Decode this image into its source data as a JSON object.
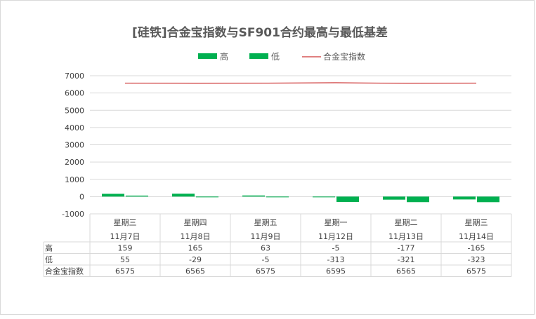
{
  "chart_data": {
    "type": "bar",
    "title": "[硅铁]合金宝指数与SF901合约最高与最低基差",
    "categories": [
      {
        "day": "星期三",
        "date": "11月7日"
      },
      {
        "day": "星期四",
        "date": "11月8日"
      },
      {
        "day": "星期五",
        "date": "11月9日"
      },
      {
        "day": "星期一",
        "date": "11月12日"
      },
      {
        "day": "星期二",
        "date": "11月13日"
      },
      {
        "day": "星期三",
        "date": "11月14日"
      }
    ],
    "series": [
      {
        "name": "高",
        "type": "bar",
        "color": "#00b050",
        "values": [
          159,
          165,
          63,
          -5,
          -177,
          -165
        ]
      },
      {
        "name": "低",
        "type": "bar",
        "color": "#00b050",
        "values": [
          55,
          -29,
          -5,
          -313,
          -321,
          -323
        ]
      },
      {
        "name": "合金宝指数",
        "type": "line",
        "color": "#c00000",
        "values": [
          6575,
          6565,
          6575,
          6595,
          6565,
          6575
        ]
      }
    ],
    "y_ticks": [
      7000,
      6000,
      5000,
      4000,
      3000,
      2000,
      1000,
      0,
      -1000
    ],
    "ylim": [
      -1000,
      7000
    ],
    "grid": true,
    "legend_position": "top",
    "data_table": true
  }
}
